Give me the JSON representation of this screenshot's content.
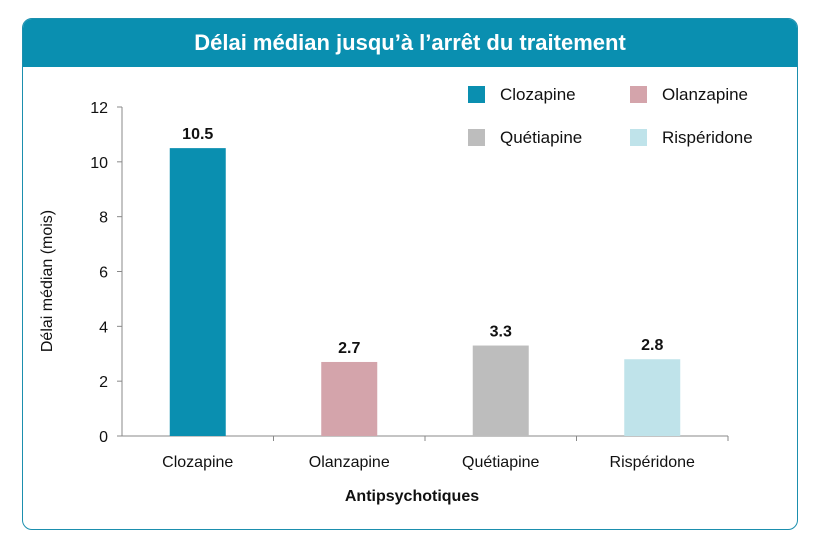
{
  "chart_data": {
    "type": "bar",
    "title": "Délai médian jusqu’à l’arrêt du traitement",
    "xlabel": "Antipsychotiques",
    "ylabel": "Délai médian (mois)",
    "categories": [
      "Clozapine",
      "Olanzapine",
      "Quétiapine",
      "Rispéridone"
    ],
    "values": [
      10.5,
      2.7,
      3.3,
      2.8
    ],
    "value_labels": [
      "10.5",
      "2.7",
      "3.3",
      "2.8"
    ],
    "colors": [
      "#0a8fb0",
      "#d4a4ab",
      "#bdbdbd",
      "#bfe3ea"
    ],
    "ylim": [
      0,
      12
    ],
    "yticks": [
      0,
      2,
      4,
      6,
      8,
      10,
      12
    ],
    "grid": false,
    "legend": {
      "placement": "top-right",
      "entries": [
        "Clozapine",
        "Olanzapine",
        "Quétiapine",
        "Rispéridone"
      ]
    },
    "header_color": "#0a8fb0"
  }
}
